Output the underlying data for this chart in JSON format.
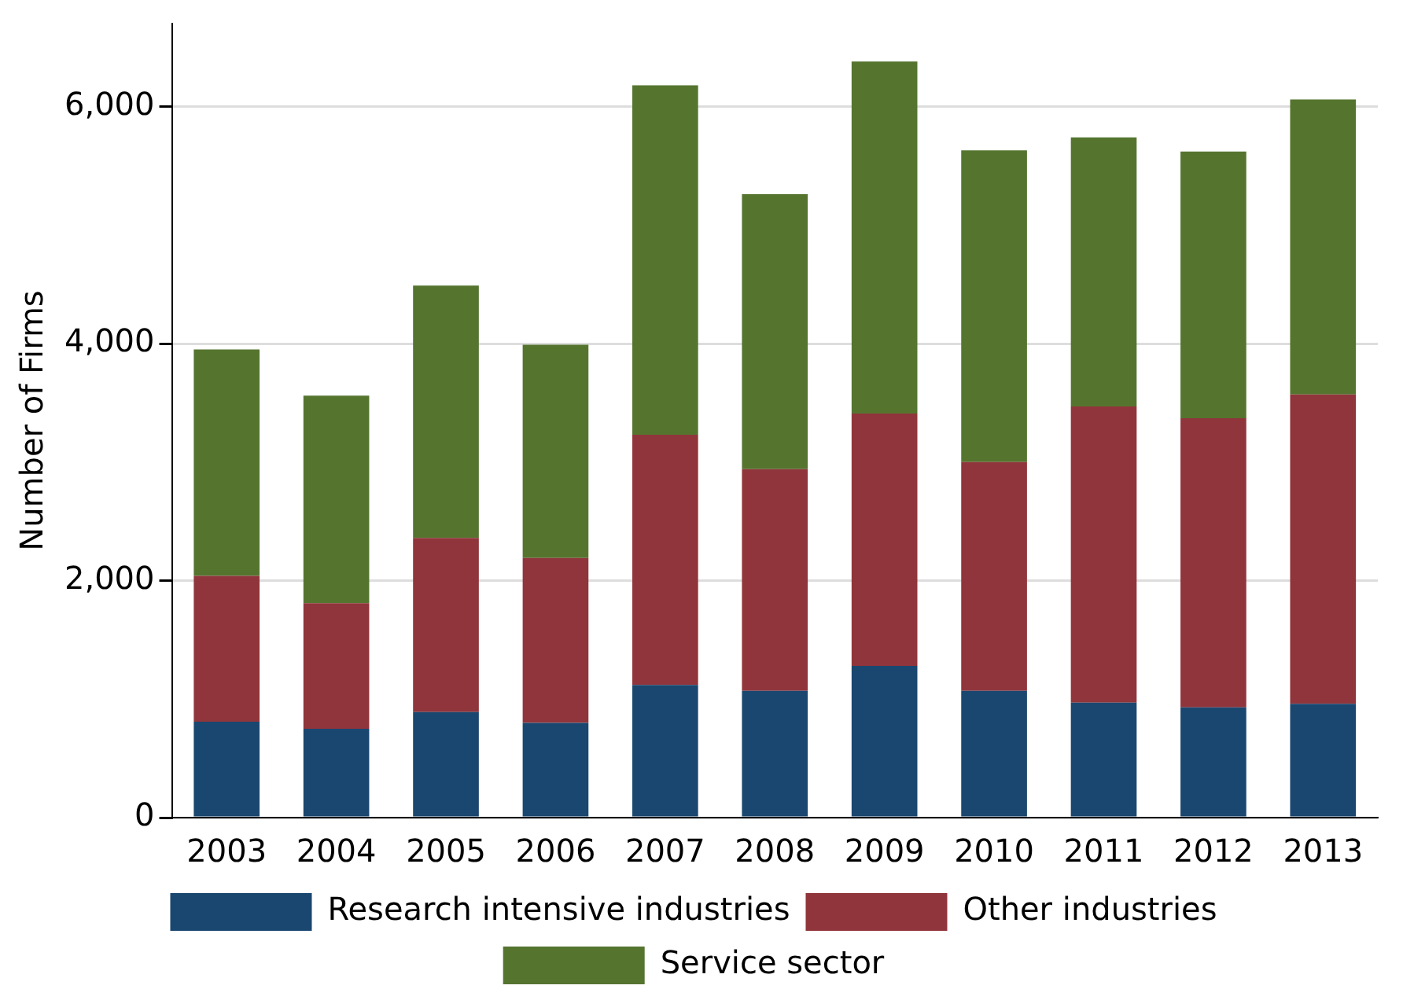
{
  "chart_data": {
    "type": "bar",
    "ylabel": "Number of Firms",
    "stacked": true,
    "categories": [
      "2003",
      "2004",
      "2005",
      "2006",
      "2007",
      "2008",
      "2009",
      "2010",
      "2011",
      "2012",
      "2013"
    ],
    "series": [
      {
        "name": "Research intensive industries",
        "color": "#1a476f",
        "values": [
          810,
          750,
          890,
          800,
          1120,
          1070,
          1280,
          1070,
          970,
          930,
          960
        ]
      },
      {
        "name": "Other industries",
        "color": "#90353b",
        "values": [
          1230,
          1060,
          1470,
          1390,
          2110,
          1870,
          2130,
          1930,
          2500,
          2440,
          2610
        ]
      },
      {
        "name": "Service sector",
        "color": "#55752f",
        "values": [
          1910,
          1750,
          2130,
          1800,
          2950,
          2320,
          2970,
          2630,
          2270,
          2250,
          2490
        ]
      }
    ],
    "ylim": [
      0,
      6700
    ],
    "yticks": [
      {
        "value": 0,
        "label": "0"
      },
      {
        "value": 2000,
        "label": "2,000"
      },
      {
        "value": 4000,
        "label": "4,000"
      },
      {
        "value": 6000,
        "label": "6,000"
      }
    ],
    "grid": "y",
    "legend": "bottom"
  }
}
